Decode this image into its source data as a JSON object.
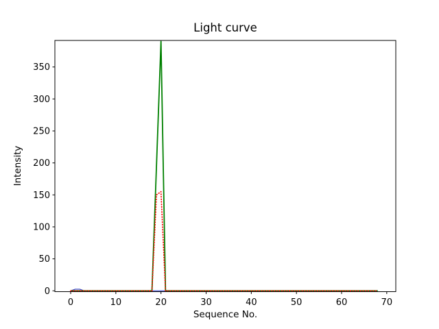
{
  "chart_data": {
    "type": "line",
    "title": "Light curve",
    "xlabel": "Sequence No.",
    "ylabel": "Intensity",
    "xlim": [
      -3.5,
      72
    ],
    "ylim": [
      -1.3,
      391.5
    ],
    "xticks": [
      0,
      10,
      20,
      30,
      40,
      50,
      60,
      70
    ],
    "yticks": [
      0,
      50,
      100,
      150,
      200,
      250,
      300,
      350
    ],
    "grid": false,
    "legend": "none",
    "background": "#ffffff",
    "axis_color": "#000000",
    "x": [
      0,
      1,
      2,
      3,
      4,
      5,
      6,
      7,
      8,
      9,
      10,
      11,
      12,
      13,
      14,
      15,
      16,
      17,
      18,
      19,
      20,
      21,
      22,
      23,
      24,
      25,
      26,
      27,
      28,
      29,
      30,
      31,
      32,
      33,
      34,
      35,
      36,
      37,
      38,
      39,
      40,
      41,
      42,
      43,
      44,
      45,
      46,
      47,
      48,
      49,
      50,
      51,
      52,
      53,
      54,
      55,
      56,
      57,
      58,
      59,
      60,
      61,
      62,
      63,
      64,
      65,
      66,
      67,
      68
    ],
    "series": [
      {
        "name": "blue-series",
        "color": "#3344cc",
        "style": "solid",
        "width": 1.2,
        "values": [
          0,
          2.5,
          2.5,
          0,
          0,
          0,
          0,
          0,
          0,
          0,
          0,
          0,
          0,
          0,
          0,
          0,
          0,
          0,
          0,
          0,
          0,
          0,
          0,
          0,
          0,
          0,
          0,
          0,
          0,
          0,
          0,
          0,
          0,
          0,
          0,
          0,
          0,
          0,
          0,
          0,
          0,
          0,
          0,
          0,
          0,
          0,
          0,
          0,
          0,
          0,
          0,
          0,
          0,
          0,
          0,
          0,
          0,
          0,
          0,
          0,
          0,
          0,
          0,
          0,
          0,
          0,
          0,
          0,
          0
        ]
      },
      {
        "name": "green-series",
        "color": "#008000",
        "style": "solid",
        "width": 1.8,
        "values": [
          0,
          0,
          0,
          0,
          0,
          0,
          0,
          0,
          0,
          0,
          0,
          0,
          0,
          0,
          0,
          0,
          0,
          0,
          0,
          195,
          390,
          0,
          0,
          0,
          0,
          0,
          0,
          0,
          0,
          0,
          0,
          0,
          0,
          0,
          0,
          0,
          0,
          0,
          0,
          0,
          0,
          0,
          0,
          0,
          0,
          0,
          0,
          0,
          0,
          0,
          0,
          0,
          0,
          0,
          0,
          0,
          0,
          0,
          0,
          0,
          0,
          0,
          0,
          0,
          0,
          0,
          0,
          0,
          0
        ]
      },
      {
        "name": "red-series",
        "color": "#ff0000",
        "style": "dotted",
        "width": 1.8,
        "values": [
          0,
          0,
          0,
          0,
          0,
          0,
          0,
          0,
          0,
          0,
          0,
          0,
          0,
          0,
          0,
          0,
          0,
          0,
          0,
          150,
          155,
          0,
          0,
          0,
          0,
          0,
          0,
          0,
          0,
          0,
          0,
          0,
          0,
          0,
          0,
          0,
          0,
          0,
          0,
          0,
          0,
          0,
          0,
          0,
          0,
          0,
          0,
          0,
          0,
          0,
          0,
          0,
          0,
          0,
          0,
          0,
          0,
          0,
          0,
          0,
          0,
          0,
          0,
          0,
          0,
          0,
          0,
          0,
          0
        ]
      }
    ]
  }
}
